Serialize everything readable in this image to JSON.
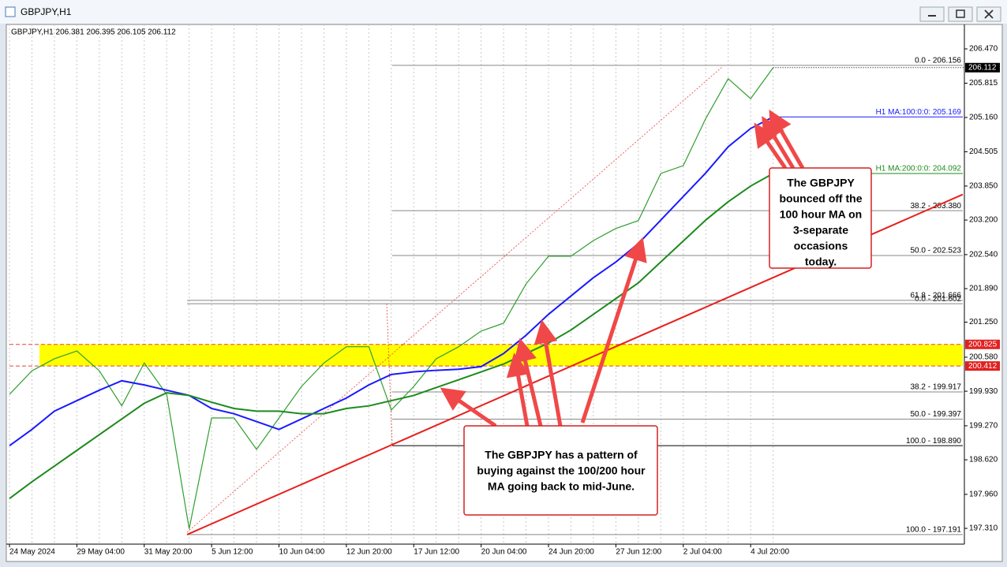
{
  "window_title": "GBPJPY,H1",
  "chart_data": {
    "type": "line",
    "header": "GBPJPY,H1  206.381 206.395 206.105 206.112",
    "categories": [
      "24 May 2024",
      null,
      null,
      "29 May 04:00",
      null,
      null,
      "31 May 20:00",
      null,
      null,
      "5 Jun 12:00",
      null,
      null,
      "10 Jun 04:00",
      null,
      null,
      "12 Jun 20:00",
      null,
      null,
      "17 Jun 12:00",
      null,
      null,
      "20 Jun 04:00",
      null,
      null,
      "24 Jun 20:00",
      null,
      null,
      "27 Jun 12:00",
      null,
      null,
      "2 Jul 04:00",
      null,
      null,
      "4 Jul 20:00",
      null
    ],
    "series": [
      {
        "color": "#2f9e2f",
        "values": [
          199.87,
          200.32,
          200.55,
          200.7,
          200.32,
          199.65,
          200.47,
          199.87,
          197.3,
          199.42,
          199.42,
          198.82,
          199.42,
          200.02,
          200.47,
          200.78,
          200.78,
          199.57,
          200.02,
          200.55,
          200.78,
          201.08,
          201.23,
          201.98,
          202.51,
          202.51,
          202.81,
          203.04,
          203.19,
          204.09,
          204.24,
          205.14,
          205.9,
          205.52,
          206.11
        ]
      },
      {
        "name": "H1 MA:100:0:0: 205.169",
        "color": "#1a1aff",
        "values": [
          198.89,
          199.2,
          199.55,
          199.75,
          199.95,
          200.13,
          200.05,
          199.95,
          199.85,
          199.6,
          199.5,
          199.35,
          199.2,
          199.4,
          199.6,
          199.8,
          200.05,
          200.25,
          200.3,
          200.33,
          200.35,
          200.4,
          200.65,
          201.0,
          201.4,
          201.75,
          202.1,
          202.4,
          202.75,
          203.2,
          203.65,
          204.1,
          204.6,
          204.95,
          205.17
        ]
      },
      {
        "name": "H1 MA:200:0:0: 204.092",
        "color": "#1e8a1e",
        "values": [
          197.88,
          198.2,
          198.5,
          198.8,
          199.1,
          199.4,
          199.7,
          199.9,
          199.85,
          199.72,
          199.6,
          199.55,
          199.55,
          199.5,
          199.5,
          199.6,
          199.65,
          199.75,
          199.85,
          200.0,
          200.15,
          200.3,
          200.45,
          200.65,
          200.85,
          201.1,
          201.4,
          201.7,
          202.0,
          202.4,
          202.8,
          203.2,
          203.55,
          203.85,
          204.09
        ]
      }
    ],
    "ylim": [
      197.009,
      206.877
    ],
    "yticks": [
      {
        "value": 206.47,
        "label": "206.470"
      },
      205.815,
      {
        "value": 205.16,
        "label": "205.160"
      },
      204.505,
      {
        "value": 203.85,
        "label": "203.850"
      },
      {
        "value": 203.2,
        "label": "203.200"
      },
      {
        "value": 202.54,
        "label": "202.540"
      },
      {
        "value": 201.89,
        "label": "201.890"
      },
      {
        "value": 201.25,
        "label": "201.250"
      },
      {
        "value": 200.58,
        "label": "200.580"
      },
      {
        "value": 199.93,
        "label": "199.930"
      },
      {
        "value": 199.27,
        "label": "199.270"
      },
      {
        "value": 198.62,
        "label": "198.620"
      },
      {
        "value": 197.96,
        "label": "197.960"
      },
      {
        "value": 197.31,
        "label": "197.310"
      }
    ],
    "grid": true,
    "price_label": 206.112,
    "zone": {
      "from": 200.412,
      "to": 200.825,
      "color": "#ffff00"
    },
    "fib_levels": [
      {
        "label": "0.0 - 206.156",
        "value": 206.156
      },
      {
        "label": "38.2 - 203.380",
        "value": 203.38
      },
      {
        "label": "50.0 - 202.523",
        "value": 202.523
      },
      {
        "label": "0.0 - 201.602",
        "value": 201.602
      },
      {
        "label": "61.8 - 201.666",
        "value": 201.666
      },
      {
        "label": "38.2 - 199.917",
        "value": 199.917
      },
      {
        "label": "50.0 - 199.397",
        "value": 199.397
      },
      {
        "label": "100.0 - 198.890",
        "value": 198.89
      },
      {
        "label": "100.0 - 197.191",
        "value": 197.191
      }
    ],
    "trendline": {
      "from": 197.191,
      "to": 203.69,
      "color": "#e8201c"
    },
    "annotations": [
      {
        "lines": [
          "The GBPJPY",
          "bounced off the",
          "100 hour MA on",
          "3-separate",
          "occasions",
          "today."
        ]
      },
      {
        "lines": [
          "The GBPJPY has a pattern of",
          "buying against the 100/200 hour",
          "MA going back to mid-June."
        ]
      }
    ]
  }
}
